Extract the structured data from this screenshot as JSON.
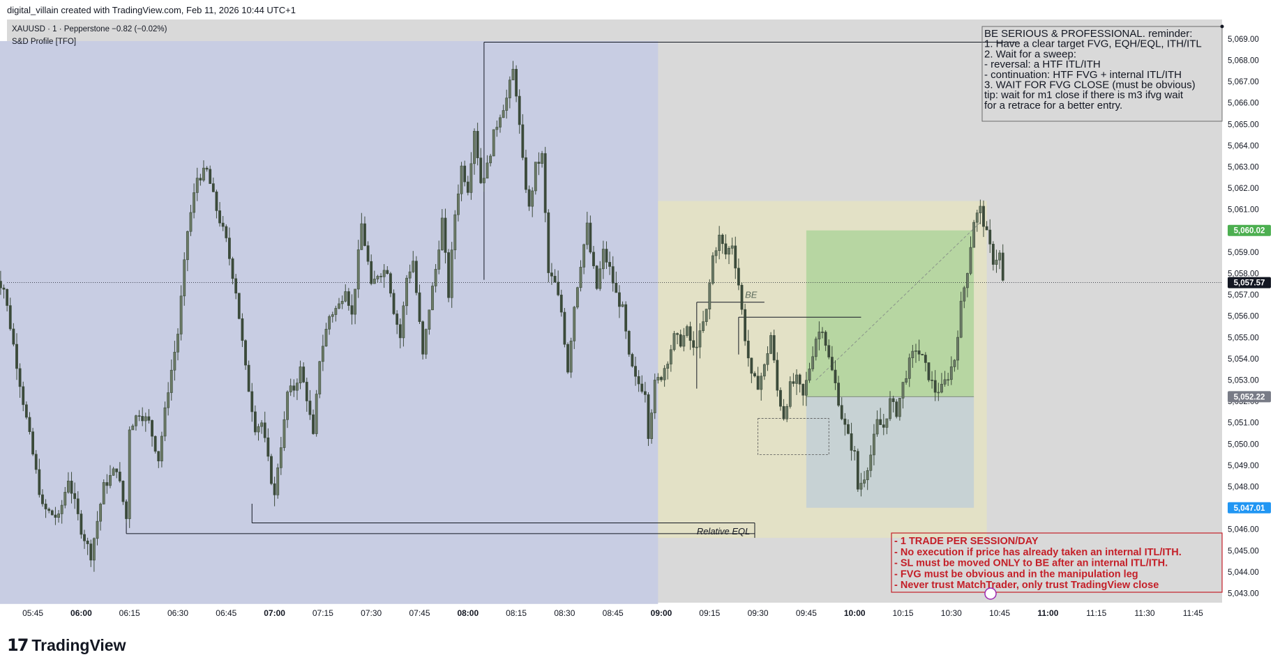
{
  "header": {
    "credit": "digital_villain created with TradingView.com, Feb 11, 2026 10:44 UTC+1"
  },
  "legend": {
    "symbol": "XAUUSD · 1 · Pepperstone",
    "change": "−0.82 (−0.02%)",
    "indicator": "S&D Profile [TFO]"
  },
  "brand": {
    "mark": "17",
    "name": "TradingView"
  },
  "colors": {
    "plot_bg": "#d9d9d9",
    "asia_zone": "#c8cde3",
    "session_zone": "#e3e1c6",
    "profit_zone": "#b7d6a2",
    "loss_zone": "#c7d2d4",
    "candle": "#3b4a3a",
    "note_text_red": "#c41f28",
    "badge_green": "#4caf50",
    "badge_black": "#131722",
    "badge_gray": "#787b86",
    "badge_blue": "#2196f3"
  },
  "notes": {
    "reminder": [
      "BE SERIOUS & PROFESSIONAL. reminder:",
      "1. Have a clear target FVG, EQH/EQL, ITH/ITL",
      "2. Wait for a sweep:",
      "- reversal: a HTF ITL/ITH",
      "- continuation: HTF FVG + internal ITL/ITH",
      "3. WAIT FOR FVG CLOSE (must be obvious)",
      "tip: wait for m1 close if there is m3 ifvg wait",
      "for a retrace for a better entry."
    ],
    "rules": [
      "- 1 TRADE PER SESSION/DAY",
      "- No execution if price has already taken an internal ITL/ITH.",
      "- SL must be moved ONLY to BE after an internal ITL/ITH.",
      "- FVG must be obvious and in the manipulation leg",
      "- Never trust MatchTrader, only trust TradingView close"
    ]
  },
  "chart_data": {
    "type": "candlestick",
    "symbol": "XAUUSD",
    "timeframe": "1",
    "ylim": [
      5042.5,
      5069.5
    ],
    "x_tick_labels": [
      "05:45",
      "06:00",
      "06:15",
      "06:30",
      "06:45",
      "07:00",
      "07:15",
      "07:30",
      "07:45",
      "08:00",
      "08:15",
      "08:30",
      "08:45",
      "09:00",
      "09:15",
      "09:30",
      "09:45",
      "10:00",
      "10:15",
      "10:30",
      "10:45",
      "11:00",
      "11:15",
      "11:30",
      "11:45"
    ],
    "x_tick_minutes": [
      345,
      360,
      375,
      390,
      405,
      420,
      435,
      450,
      465,
      480,
      495,
      510,
      525,
      540,
      555,
      570,
      585,
      600,
      615,
      630,
      645,
      660,
      675,
      690,
      705
    ],
    "bold_x_ticks": [
      "06:00",
      "07:00",
      "08:00",
      "09:00",
      "10:00",
      "11:00"
    ],
    "y_ticks": [
      5043,
      5044,
      5045,
      5046,
      5047,
      5048,
      5049,
      5050,
      5051,
      5052,
      5053,
      5054,
      5055,
      5056,
      5057,
      5058,
      5059,
      5060,
      5061,
      5062,
      5063,
      5064,
      5065,
      5066,
      5067,
      5068,
      5069
    ],
    "price_badges": [
      {
        "value": 5060.02,
        "label": "5,060.02",
        "color": "#4caf50"
      },
      {
        "value": 5057.57,
        "label": "5,057.57",
        "color": "#131722"
      },
      {
        "value": 5052.22,
        "label": "5,052.22",
        "color": "#787b86"
      },
      {
        "value": 5047.01,
        "label": "5,047.01",
        "color": "#2196f3"
      }
    ],
    "last_price": 5057.57,
    "key_points": [
      [
        333,
        5058.0
      ],
      [
        336,
        5057.3
      ],
      [
        342,
        5052.0
      ],
      [
        348,
        5047.0
      ],
      [
        353,
        5046.5
      ],
      [
        356,
        5048.4
      ],
      [
        360,
        5046.0
      ],
      [
        363,
        5044.8
      ],
      [
        367,
        5048.0
      ],
      [
        371,
        5048.9
      ],
      [
        374,
        5046.5
      ],
      [
        375,
        5050.8
      ],
      [
        378,
        5051.5
      ],
      [
        381,
        5051.0
      ],
      [
        384,
        5049.3
      ],
      [
        387,
        5052.6
      ],
      [
        390,
        5055.2
      ],
      [
        393,
        5060.0
      ],
      [
        396,
        5062.5
      ],
      [
        399,
        5062.8
      ],
      [
        402,
        5061.0
      ],
      [
        405,
        5059.5
      ],
      [
        408,
        5057.2
      ],
      [
        411,
        5053.5
      ],
      [
        414,
        5050.8
      ],
      [
        416,
        5051.0
      ],
      [
        418,
        5049.2
      ],
      [
        420,
        5047.5
      ],
      [
        421,
        5049.0
      ],
      [
        423,
        5051.0
      ],
      [
        424,
        5052.4
      ],
      [
        426,
        5052.6
      ],
      [
        428,
        5053.5
      ],
      [
        430,
        5052.2
      ],
      [
        432,
        5050.3
      ],
      [
        434,
        5054.0
      ],
      [
        437,
        5056.0
      ],
      [
        440,
        5056.5
      ],
      [
        442,
        5057.4
      ],
      [
        444,
        5056.0
      ],
      [
        447,
        5060.3
      ],
      [
        449,
        5058.5
      ],
      [
        450,
        5057.3
      ],
      [
        452,
        5058.0
      ],
      [
        455,
        5058.2
      ],
      [
        457,
        5056.3
      ],
      [
        459,
        5055.0
      ],
      [
        461,
        5057.8
      ],
      [
        463,
        5058.6
      ],
      [
        466,
        5054.1
      ],
      [
        468,
        5056.4
      ],
      [
        470,
        5058.2
      ],
      [
        472,
        5060.5
      ],
      [
        474,
        5057.0
      ],
      [
        476,
        5060.8
      ],
      [
        478,
        5063.0
      ],
      [
        480,
        5062.0
      ],
      [
        482,
        5064.8
      ],
      [
        484,
        5062.3
      ],
      [
        486,
        5063.0
      ],
      [
        488,
        5064.5
      ],
      [
        490,
        5065.5
      ],
      [
        492,
        5066.2
      ],
      [
        494,
        5067.5
      ],
      [
        495,
        5066.5
      ],
      [
        497,
        5063.2
      ],
      [
        499,
        5061.0
      ],
      [
        501,
        5063.0
      ],
      [
        503,
        5063.5
      ],
      [
        505,
        5058.0
      ],
      [
        507,
        5057.5
      ],
      [
        509,
        5056.2
      ],
      [
        511,
        5053.5
      ],
      [
        513,
        5056.5
      ],
      [
        515,
        5058.5
      ],
      [
        517,
        5060.2
      ],
      [
        518,
        5059.0
      ],
      [
        520,
        5057.3
      ],
      [
        522,
        5059.0
      ],
      [
        524,
        5058.2
      ],
      [
        526,
        5057.0
      ],
      [
        528,
        5056.3
      ],
      [
        530,
        5054.0
      ],
      [
        532,
        5053.0
      ],
      [
        535,
        5052.5
      ],
      [
        536,
        5050.5
      ],
      [
        538,
        5052.8
      ],
      [
        540,
        5053.2
      ],
      [
        542,
        5054.0
      ],
      [
        544,
        5055.0
      ],
      [
        546,
        5054.8
      ],
      [
        548,
        5055.3
      ],
      [
        550,
        5054.4
      ],
      [
        552,
        5055.1
      ],
      [
        554,
        5056.2
      ],
      [
        556,
        5058.8
      ],
      [
        558,
        5059.7
      ],
      [
        560,
        5058.9
      ],
      [
        562,
        5059.4
      ],
      [
        564,
        5057.5
      ],
      [
        566,
        5055.0
      ],
      [
        568,
        5053.1
      ],
      [
        570,
        5052.8
      ],
      [
        572,
        5053.6
      ],
      [
        574,
        5055.1
      ],
      [
        576,
        5052.5
      ],
      [
        578,
        5051.3
      ],
      [
        580,
        5052.7
      ],
      [
        582,
        5053.0
      ],
      [
        584,
        5052.2
      ],
      [
        586,
        5053.6
      ],
      [
        588,
        5055.0
      ],
      [
        590,
        5055.5
      ],
      [
        592,
        5054.0
      ],
      [
        594,
        5052.8
      ],
      [
        596,
        5051.3
      ],
      [
        598,
        5050.3
      ],
      [
        600,
        5049.5
      ],
      [
        601,
        5047.9
      ],
      [
        603,
        5048.5
      ],
      [
        605,
        5049.5
      ],
      [
        607,
        5051.0
      ],
      [
        609,
        5050.8
      ],
      [
        611,
        5052.0
      ],
      [
        613,
        5051.5
      ],
      [
        615,
        5052.8
      ],
      [
        617,
        5053.8
      ],
      [
        619,
        5054.5
      ],
      [
        621,
        5054.0
      ],
      [
        623,
        5053.2
      ],
      [
        625,
        5052.5
      ],
      [
        627,
        5052.6
      ],
      [
        629,
        5053.2
      ],
      [
        631,
        5054.0
      ],
      [
        633,
        5056.5
      ],
      [
        635,
        5058.2
      ],
      [
        637,
        5060.5
      ],
      [
        639,
        5061.0
      ],
      [
        641,
        5059.8
      ],
      [
        643,
        5058.6
      ],
      [
        645,
        5058.9
      ],
      [
        646,
        5057.6
      ]
    ],
    "trade_box": {
      "x_start": 585,
      "x_end": 637,
      "entry": 5052.22,
      "take_profit": 5060.02,
      "stop_loss": 5047.01
    },
    "zones": [
      {
        "name": "asia-zone",
        "x_start": 330,
        "x_end": 539,
        "y_low": 5042.5,
        "y_high": 5068.9
      },
      {
        "name": "session-zone",
        "x_start": 539,
        "x_end": 641,
        "y_low": 5045.6,
        "y_high": 5061.4
      }
    ],
    "levels": [
      {
        "x_start": 485,
        "x_end": 651,
        "value": 5068.85
      },
      {
        "x_start": 551,
        "x_end": 572,
        "value": 5056.65
      },
      {
        "x_start": 564,
        "x_end": 602,
        "value": 5055.95
      },
      {
        "x_start": 413,
        "x_end": 569,
        "value": 5046.3
      },
      {
        "x_start": 374,
        "x_end": 569,
        "value": 5045.8
      }
    ],
    "annotations": {
      "be_label": "BE",
      "relative_eql": "Relative EQL",
      "eql_value": 5045.8
    }
  }
}
